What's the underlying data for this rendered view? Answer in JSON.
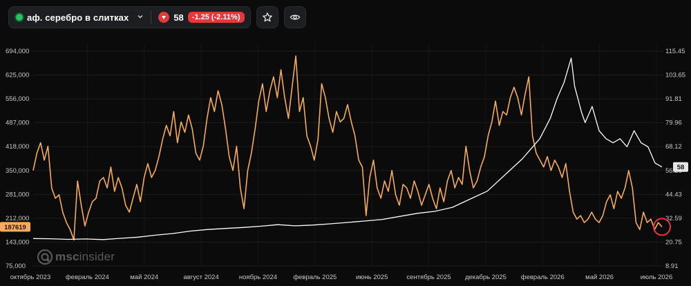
{
  "toolbar": {
    "asset_name": "аф. серебро в слитках",
    "price": "58",
    "change": "-1.25 (-2.11%)"
  },
  "logo": {
    "brand_bold": "msc",
    "brand_rest": "insider"
  },
  "icons": {
    "status": "status-dot-icon",
    "dropdown": "chevron-down-icon",
    "trend": "down-arrow-icon",
    "favorite": "star-icon",
    "watch": "eye-icon",
    "logo": "msc-logo-icon"
  },
  "colors": {
    "volume_line": "#f5ac5c",
    "price_line": "#ffffff",
    "down": "#e5383b",
    "live": "#22c55e"
  },
  "chart_data": {
    "type": "line",
    "x_labels": [
      "октябрь 2023",
      "февраль 2024",
      "май 2024",
      "август 2024",
      "ноябрь 2024",
      "февраль 2025",
      "июнь 2025",
      "сентябрь 2025",
      "декабрь 2025",
      "февраль 2026",
      "май 2026",
      "июль 2026"
    ],
    "left_axis": {
      "ticks": [
        "694,000",
        "625,000",
        "556,000",
        "487,000",
        "418,000",
        "350,000",
        "281,000",
        "212,000",
        "143,000",
        "75,000"
      ],
      "range": [
        75000,
        694000
      ]
    },
    "right_axis": {
      "ticks": [
        "115.45",
        "103.65",
        "91.81",
        "79.96",
        "68.12",
        "56.28",
        "44.43",
        "32.59",
        "20.75",
        "8.91"
      ],
      "range": [
        8.91,
        115.45
      ]
    },
    "left_last_value": "187619",
    "right_last_value": "58",
    "grid": true,
    "series": [
      {
        "axis": "left",
        "points": [
          [
            0,
            350000
          ],
          [
            1,
            400000
          ],
          [
            2,
            430000
          ],
          [
            3,
            380000
          ],
          [
            4,
            420000
          ],
          [
            5,
            300000
          ],
          [
            6,
            270000
          ],
          [
            7,
            280000
          ],
          [
            8,
            230000
          ],
          [
            9,
            200000
          ],
          [
            10,
            180000
          ],
          [
            11,
            150000
          ],
          [
            12,
            320000
          ],
          [
            13,
            250000
          ],
          [
            14,
            190000
          ],
          [
            15,
            230000
          ],
          [
            16,
            260000
          ],
          [
            17,
            270000
          ],
          [
            18,
            320000
          ],
          [
            19,
            330000
          ],
          [
            20,
            300000
          ],
          [
            21,
            360000
          ],
          [
            22,
            290000
          ],
          [
            23,
            330000
          ],
          [
            24,
            300000
          ],
          [
            25,
            250000
          ],
          [
            26,
            230000
          ],
          [
            27,
            270000
          ],
          [
            28,
            310000
          ],
          [
            29,
            260000
          ],
          [
            30,
            330000
          ],
          [
            31,
            370000
          ],
          [
            32,
            330000
          ],
          [
            33,
            350000
          ],
          [
            34,
            390000
          ],
          [
            35,
            440000
          ],
          [
            36,
            480000
          ],
          [
            37,
            450000
          ],
          [
            38,
            520000
          ],
          [
            39,
            430000
          ],
          [
            40,
            490000
          ],
          [
            41,
            460000
          ],
          [
            42,
            510000
          ],
          [
            43,
            470000
          ],
          [
            44,
            400000
          ],
          [
            45,
            380000
          ],
          [
            46,
            420000
          ],
          [
            47,
            500000
          ],
          [
            48,
            560000
          ],
          [
            49,
            520000
          ],
          [
            50,
            580000
          ],
          [
            51,
            540000
          ],
          [
            52,
            470000
          ],
          [
            53,
            390000
          ],
          [
            54,
            350000
          ],
          [
            55,
            420000
          ],
          [
            56,
            300000
          ],
          [
            57,
            240000
          ],
          [
            58,
            350000
          ],
          [
            59,
            400000
          ],
          [
            60,
            470000
          ],
          [
            61,
            550000
          ],
          [
            62,
            600000
          ],
          [
            63,
            520000
          ],
          [
            64,
            580000
          ],
          [
            65,
            620000
          ],
          [
            66,
            560000
          ],
          [
            67,
            640000
          ],
          [
            68,
            560000
          ],
          [
            69,
            500000
          ],
          [
            70,
            590000
          ],
          [
            71,
            680000
          ],
          [
            72,
            520000
          ],
          [
            73,
            560000
          ],
          [
            74,
            450000
          ],
          [
            75,
            420000
          ],
          [
            76,
            380000
          ],
          [
            77,
            440000
          ],
          [
            78,
            600000
          ],
          [
            79,
            560000
          ],
          [
            80,
            500000
          ],
          [
            81,
            460000
          ],
          [
            82,
            520000
          ],
          [
            83,
            490000
          ],
          [
            84,
            500000
          ],
          [
            85,
            540000
          ],
          [
            86,
            490000
          ],
          [
            87,
            450000
          ],
          [
            88,
            380000
          ],
          [
            89,
            360000
          ],
          [
            90,
            220000
          ],
          [
            91,
            330000
          ],
          [
            92,
            380000
          ],
          [
            93,
            300000
          ],
          [
            94,
            270000
          ],
          [
            95,
            320000
          ],
          [
            96,
            290000
          ],
          [
            97,
            350000
          ],
          [
            98,
            280000
          ],
          [
            99,
            250000
          ],
          [
            100,
            310000
          ],
          [
            101,
            300000
          ],
          [
            102,
            270000
          ],
          [
            103,
            320000
          ],
          [
            104,
            290000
          ],
          [
            105,
            250000
          ],
          [
            106,
            280000
          ],
          [
            107,
            310000
          ],
          [
            108,
            270000
          ],
          [
            109,
            240000
          ],
          [
            110,
            300000
          ],
          [
            111,
            260000
          ],
          [
            112,
            320000
          ],
          [
            113,
            350000
          ],
          [
            114,
            300000
          ],
          [
            115,
            330000
          ],
          [
            116,
            310000
          ],
          [
            117,
            420000
          ],
          [
            118,
            350000
          ],
          [
            119,
            300000
          ],
          [
            120,
            320000
          ],
          [
            121,
            360000
          ],
          [
            122,
            390000
          ],
          [
            123,
            450000
          ],
          [
            124,
            490000
          ],
          [
            125,
            550000
          ],
          [
            126,
            480000
          ],
          [
            127,
            520000
          ],
          [
            128,
            510000
          ],
          [
            129,
            560000
          ],
          [
            130,
            590000
          ],
          [
            131,
            560000
          ],
          [
            132,
            510000
          ],
          [
            133,
            570000
          ],
          [
            134,
            620000
          ],
          [
            135,
            450000
          ],
          [
            136,
            400000
          ],
          [
            137,
            380000
          ],
          [
            138,
            360000
          ],
          [
            139,
            390000
          ],
          [
            140,
            350000
          ],
          [
            141,
            380000
          ],
          [
            142,
            360000
          ],
          [
            143,
            330000
          ],
          [
            144,
            370000
          ],
          [
            145,
            290000
          ],
          [
            146,
            230000
          ],
          [
            147,
            210000
          ],
          [
            148,
            220000
          ],
          [
            149,
            200000
          ],
          [
            150,
            210000
          ],
          [
            151,
            230000
          ],
          [
            152,
            210000
          ],
          [
            153,
            200000
          ],
          [
            154,
            220000
          ],
          [
            155,
            260000
          ],
          [
            156,
            280000
          ],
          [
            157,
            240000
          ],
          [
            158,
            290000
          ],
          [
            159,
            270000
          ],
          [
            160,
            300000
          ],
          [
            161,
            350000
          ],
          [
            162,
            300000
          ],
          [
            163,
            200000
          ],
          [
            164,
            180000
          ],
          [
            165,
            230000
          ],
          [
            166,
            200000
          ],
          [
            167,
            210000
          ],
          [
            168,
            180000
          ],
          [
            169,
            200000
          ],
          [
            170,
            187619
          ]
        ]
      },
      {
        "axis": "right",
        "points": [
          [
            0,
            22.5
          ],
          [
            5,
            22.4
          ],
          [
            10,
            22.1
          ],
          [
            15,
            22.3
          ],
          [
            20,
            22.0
          ],
          [
            25,
            22.6
          ],
          [
            30,
            23.2
          ],
          [
            35,
            24.2
          ],
          [
            40,
            25.0
          ],
          [
            45,
            26.2
          ],
          [
            50,
            27.0
          ],
          [
            55,
            27.5
          ],
          [
            60,
            28.0
          ],
          [
            65,
            28.6
          ],
          [
            70,
            29.4
          ],
          [
            75,
            28.8
          ],
          [
            80,
            29.2
          ],
          [
            85,
            29.8
          ],
          [
            90,
            30.5
          ],
          [
            95,
            31.2
          ],
          [
            100,
            32.0
          ],
          [
            105,
            33.5
          ],
          [
            110,
            35.0
          ],
          [
            115,
            36.0
          ],
          [
            120,
            38.0
          ],
          [
            125,
            42.0
          ],
          [
            130,
            46.0
          ],
          [
            135,
            54.0
          ],
          [
            140,
            62.0
          ],
          [
            145,
            72.0
          ],
          [
            148,
            82.0
          ],
          [
            150,
            92.0
          ],
          [
            152,
            100.0
          ],
          [
            154,
            112.0
          ],
          [
            155,
            98.0
          ],
          [
            157,
            85.0
          ],
          [
            158,
            80.0
          ],
          [
            160,
            88.0
          ],
          [
            162,
            76.0
          ],
          [
            164,
            72.0
          ],
          [
            166,
            70.0
          ],
          [
            168,
            72.0
          ],
          [
            170,
            68.0
          ],
          [
            172,
            76.0
          ],
          [
            174,
            70.0
          ],
          [
            176,
            68.0
          ],
          [
            178,
            60.0
          ],
          [
            180,
            58.0
          ]
        ]
      }
    ]
  }
}
